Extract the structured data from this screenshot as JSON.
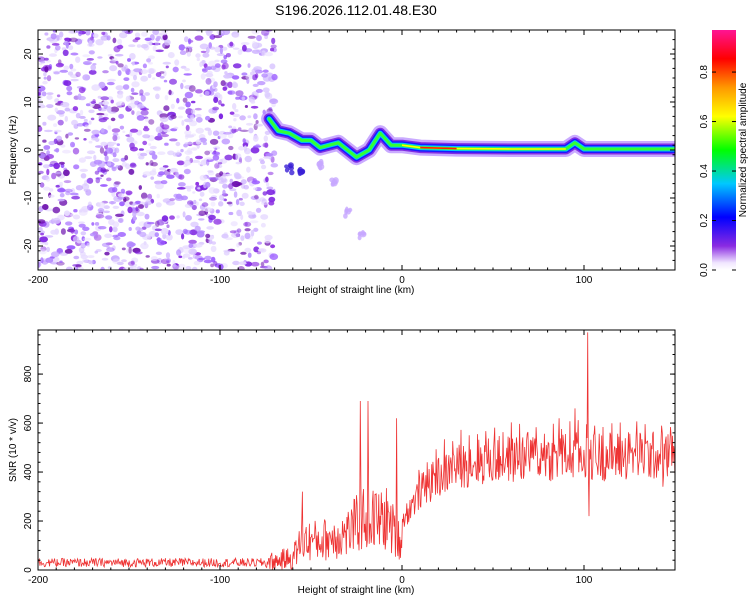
{
  "title": "S196.2026.112.01.48.E30",
  "colors": {
    "snr_line": "#ee3333",
    "frame": "#000000",
    "background": "#ffffff"
  },
  "chart_data": [
    {
      "type": "heatmap",
      "name": "spectrogram",
      "xlabel": "Height of straight line (km)",
      "ylabel": "Frequency (Hz)",
      "xlim": [
        -200,
        150
      ],
      "ylim": [
        -25,
        25
      ],
      "xticks": [
        -200,
        -100,
        0,
        100
      ],
      "yticks": [
        -20,
        -10,
        0,
        10,
        20
      ],
      "colorbar": {
        "label": "Normalized spectral amplitude",
        "range": [
          0,
          0.97
        ],
        "ticks": [
          0.0,
          0.2,
          0.4,
          0.6,
          0.8
        ],
        "colormap": "rainbow: white(0) - violet - blue - cyan - green - yellow - orange - red - magenta(1)"
      },
      "features": {
        "noise_region_x": [
          -200,
          -73
        ],
        "signal_track": [
          {
            "x": -73,
            "freq": 6.5
          },
          {
            "x": -68,
            "freq": 4
          },
          {
            "x": -62,
            "freq": 3.5
          },
          {
            "x": -55,
            "freq": 2
          },
          {
            "x": -50,
            "freq": 2
          },
          {
            "x": -45,
            "freq": 0.5
          },
          {
            "x": -40,
            "freq": 1
          },
          {
            "x": -35,
            "freq": 1.5
          },
          {
            "x": -30,
            "freq": 0
          },
          {
            "x": -25,
            "freq": -1.5
          },
          {
            "x": -18,
            "freq": 0
          },
          {
            "x": -12,
            "freq": 3.5
          },
          {
            "x": -6,
            "freq": 1
          },
          {
            "x": 0,
            "freq": 1
          },
          {
            "x": 10,
            "freq": 0.5
          },
          {
            "x": 30,
            "freq": 0.3
          },
          {
            "x": 60,
            "freq": 0.2
          },
          {
            "x": 90,
            "freq": 0.2
          },
          {
            "x": 95,
            "freq": 1.5
          },
          {
            "x": 100,
            "freq": 0.2
          },
          {
            "x": 150,
            "freq": 0.2
          }
        ],
        "secondary_branches": [
          {
            "x": -62,
            "freq": -4
          },
          {
            "x": -55,
            "freq": -5
          },
          {
            "x": -45,
            "freq": -3
          },
          {
            "x": -37,
            "freq": -7
          },
          {
            "x": -30,
            "freq": -13
          },
          {
            "x": -22,
            "freq": -18
          }
        ]
      }
    },
    {
      "type": "line",
      "name": "snr",
      "xlabel": "Height of straight line (km)",
      "ylabel": "SNR (10 * v/v)",
      "xlim": [
        -200,
        150
      ],
      "ylim": [
        0,
        980
      ],
      "xticks": [
        -200,
        -100,
        0,
        100
      ],
      "yticks": [
        0,
        200,
        400,
        600,
        800
      ],
      "series": [
        {
          "name": "SNR",
          "baseline": [
            {
              "x": -200,
              "y": 30
            },
            {
              "x": -75,
              "y": 30
            },
            {
              "x": -60,
              "y": 50
            },
            {
              "x": -55,
              "y": 120
            },
            {
              "x": -45,
              "y": 120
            },
            {
              "x": -30,
              "y": 150
            },
            {
              "x": -20,
              "y": 220
            },
            {
              "x": -12,
              "y": 200
            },
            {
              "x": -8,
              "y": 210
            },
            {
              "x": -2,
              "y": 120
            },
            {
              "x": 0,
              "y": 200
            },
            {
              "x": 10,
              "y": 320
            },
            {
              "x": 20,
              "y": 380
            },
            {
              "x": 30,
              "y": 420
            },
            {
              "x": 40,
              "y": 440
            },
            {
              "x": 60,
              "y": 455
            },
            {
              "x": 80,
              "y": 460
            },
            {
              "x": 100,
              "y": 465
            },
            {
              "x": 120,
              "y": 465
            },
            {
              "x": 150,
              "y": 465
            }
          ],
          "spikes": [
            {
              "x": 102,
              "y": 970
            },
            {
              "x": 102.5,
              "y": 220
            },
            {
              "x": 95,
              "y": 660
            },
            {
              "x": 86,
              "y": 620
            },
            {
              "x": -55,
              "y": 320
            },
            {
              "x": -23,
              "y": 690
            },
            {
              "x": -19,
              "y": 690
            },
            {
              "x": -3,
              "y": 620
            },
            {
              "x": -1,
              "y": 50
            },
            {
              "x": 143,
              "y": 340
            }
          ]
        }
      ]
    }
  ]
}
